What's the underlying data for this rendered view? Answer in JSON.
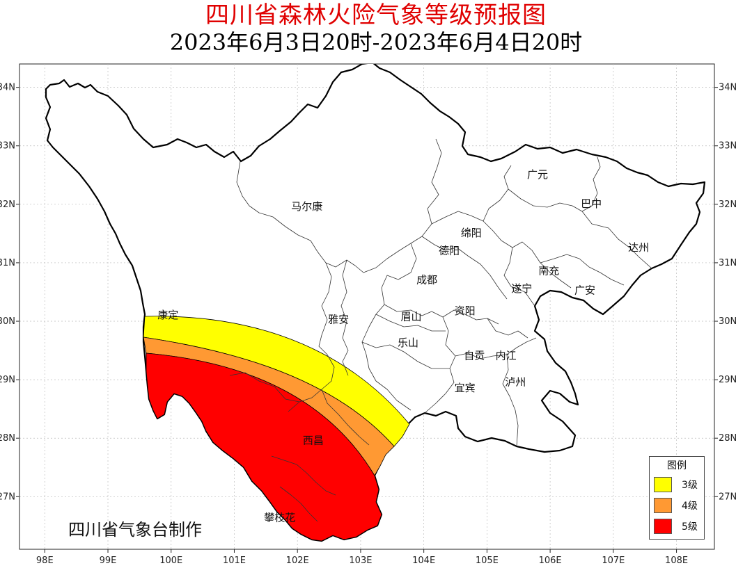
{
  "header": {
    "title": "四川省森林火险气象等级预报图",
    "subtitle": "2023年6月3日20时-2023年6月4日20时"
  },
  "map": {
    "lon_range": [
      97.6,
      108.6
    ],
    "lat_range": [
      26.1,
      34.4
    ],
    "lon_ticks": [
      "98E",
      "99E",
      "100E",
      "101E",
      "102E",
      "103E",
      "104E",
      "105E",
      "106E",
      "107E",
      "108E"
    ],
    "lat_ticks": [
      "34N",
      "33N",
      "32N",
      "31N",
      "30N",
      "29N",
      "28N",
      "27N"
    ],
    "cities": [
      {
        "name": "广元",
        "lon": 105.8,
        "lat": 32.45
      },
      {
        "name": "巴中",
        "lon": 106.65,
        "lat": 31.95
      },
      {
        "name": "马尔康",
        "lon": 102.15,
        "lat": 31.9
      },
      {
        "name": "绵阳",
        "lon": 104.75,
        "lat": 31.45
      },
      {
        "name": "德阳",
        "lon": 104.4,
        "lat": 31.15
      },
      {
        "name": "达州",
        "lon": 107.4,
        "lat": 31.2
      },
      {
        "name": "南充",
        "lon": 105.98,
        "lat": 30.8
      },
      {
        "name": "成都",
        "lon": 104.05,
        "lat": 30.65
      },
      {
        "name": "遂宁",
        "lon": 105.55,
        "lat": 30.5
      },
      {
        "name": "广安",
        "lon": 106.55,
        "lat": 30.47
      },
      {
        "name": "康定",
        "lon": 99.95,
        "lat": 30.05
      },
      {
        "name": "雅安",
        "lon": 102.65,
        "lat": 29.97
      },
      {
        "name": "眉山",
        "lon": 103.8,
        "lat": 30.02
      },
      {
        "name": "资阳",
        "lon": 104.65,
        "lat": 30.12
      },
      {
        "name": "乐山",
        "lon": 103.75,
        "lat": 29.57
      },
      {
        "name": "自贡",
        "lon": 104.8,
        "lat": 29.35
      },
      {
        "name": "内江",
        "lon": 105.3,
        "lat": 29.35
      },
      {
        "name": "宜宾",
        "lon": 104.65,
        "lat": 28.8
      },
      {
        "name": "泸州",
        "lon": 105.45,
        "lat": 28.9
      },
      {
        "name": "西昌",
        "lon": 102.25,
        "lat": 27.9
      },
      {
        "name": "攀枝花",
        "lon": 101.72,
        "lat": 26.58
      }
    ]
  },
  "legend": {
    "title": "图例",
    "items": [
      {
        "label": "3级",
        "color": "#ffff00"
      },
      {
        "label": "4级",
        "color": "#ff9933"
      },
      {
        "label": "5级",
        "color": "#ff0000"
      }
    ]
  },
  "credit": "四川省气象台制作"
}
